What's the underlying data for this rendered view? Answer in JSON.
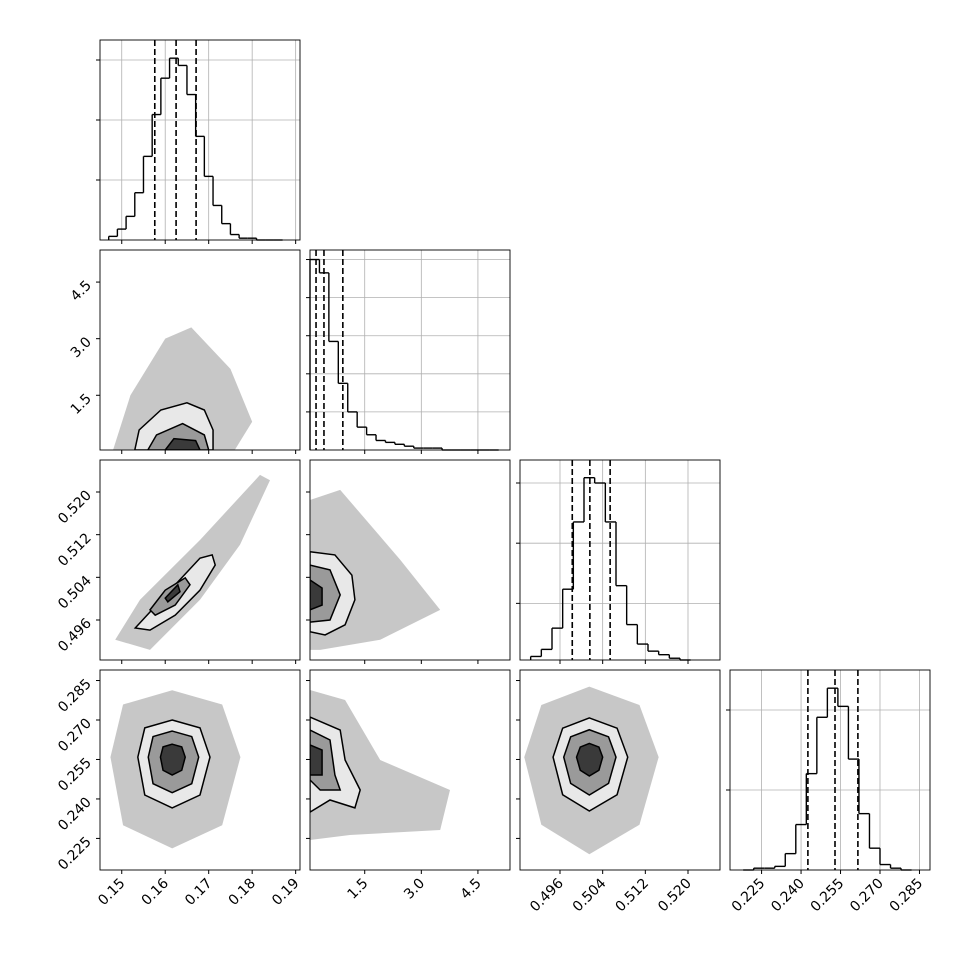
{
  "chart_data": {
    "type": "corner",
    "color": "#000000",
    "grid": true,
    "parameters": [
      {
        "lim": [
          0.145,
          0.191
        ],
        "ticks": [
          0.15,
          0.16,
          0.17,
          0.18,
          0.19
        ]
      },
      {
        "lim": [
          0.05,
          5.35
        ],
        "ticks": [
          1.5,
          {
            "value": 3,
            "label": "3.0"
          },
          4.5
        ]
      },
      {
        "lim": [
          0.4885,
          0.526
        ],
        "ticks": [
          0.496,
          0.504,
          0.512,
          {
            "value": 0.52,
            "label": "0.520"
          }
        ]
      },
      {
        "lim": [
          0.213,
          0.289
        ],
        "ticks": [
          0.225,
          {
            "value": 0.24,
            "label": "0.240"
          },
          0.255,
          {
            "value": 0.27,
            "label": "0.270"
          },
          0.285
        ]
      }
    ],
    "histograms": [
      {
        "bins": [
          0.147,
          0.149,
          0.151,
          0.153,
          0.155,
          0.157,
          0.159,
          0.161,
          0.163,
          0.165,
          0.167,
          0.169,
          0.171,
          0.173,
          0.175,
          0.177,
          0.179,
          0.181,
          0.183,
          0.185,
          0.187
        ],
        "counts": [
          2,
          6,
          13,
          26,
          46,
          69,
          89,
          100,
          96,
          80,
          57,
          35,
          19,
          9,
          3,
          1,
          1,
          0,
          0,
          0
        ],
        "quantiles": [
          0.1576,
          0.1625,
          0.1671
        ],
        "ylim": [
          0,
          110
        ],
        "yticks": [
          33,
          66,
          99
        ]
      },
      {
        "bins": [
          0.05,
          0.3,
          0.55,
          0.8,
          1.05,
          1.3,
          1.55,
          1.8,
          2.05,
          2.3,
          2.55,
          2.8,
          3.05,
          3.3,
          3.55,
          3.8,
          4.05,
          4.3,
          4.55,
          4.8,
          5.05
        ],
        "counts": [
          100,
          93,
          57,
          35,
          20,
          12,
          8,
          5,
          4,
          3,
          2,
          1,
          1,
          1,
          0,
          0,
          0,
          0,
          0,
          0
        ],
        "quantiles": [
          0.21,
          0.42,
          0.92
        ],
        "ylim": [
          0,
          105
        ],
        "yticks": [
          20,
          40,
          60,
          80,
          100
        ]
      },
      {
        "bins": [
          0.4905,
          0.4925,
          0.4945,
          0.4965,
          0.4985,
          0.5005,
          0.5025,
          0.5045,
          0.5065,
          0.5085,
          0.5105,
          0.5125,
          0.5145,
          0.5165,
          0.5185,
          0.5205
        ],
        "counts": [
          2,
          6,
          18,
          40,
          78,
          103,
          100,
          78,
          42,
          20,
          9,
          5,
          3,
          1,
          0
        ],
        "quantiles": [
          0.4983,
          0.5016,
          0.5054
        ],
        "ylim": [
          0,
          113
        ],
        "yticks": [
          32,
          66,
          100
        ]
      },
      {
        "bins": [
          0.218,
          0.222,
          0.226,
          0.23,
          0.234,
          0.238,
          0.242,
          0.246,
          0.25,
          0.254,
          0.258,
          0.262,
          0.266,
          0.27,
          0.274,
          0.278,
          0.282
        ],
        "counts": [
          0,
          1,
          1,
          2,
          9,
          25,
          53,
          84,
          100,
          90,
          61,
          31,
          12,
          3,
          1,
          0
        ],
        "quantiles": [
          0.2426,
          0.2529,
          0.2616
        ],
        "ylim": [
          0,
          110
        ],
        "yticks": [
          44,
          88
        ]
      }
    ],
    "pairs": [
      {
        "cloud": {
          "x": [
            0.148,
            0.152,
            0.16,
            0.166,
            0.175,
            0.18,
            0.176
          ],
          "y": [
            0.05,
            1.5,
            3.0,
            3.3,
            2.2,
            0.8,
            0.05
          ]
        },
        "contours": [
          {
            "x": [
              0.153,
              0.154,
              0.159,
              0.165,
              0.169,
              0.171,
              0.171
            ],
            "y": [
              0.05,
              0.58,
              1.11,
              1.3,
              1.11,
              0.58,
              0.05
            ]
          },
          {
            "x": [
              0.156,
              0.158,
              0.164,
              0.169,
              0.17
            ],
            "y": [
              0.05,
              0.45,
              0.75,
              0.45,
              0.05
            ]
          },
          {
            "x": [
              0.16,
              0.162,
              0.167,
              0.168
            ],
            "y": [
              0.05,
              0.35,
              0.3,
              0.05
            ]
          }
        ]
      },
      {
        "cloud": {
          "x": [
            0.1485,
            0.1542,
            0.168,
            0.1818,
            0.1841,
            0.1772,
            0.168,
            0.1565
          ],
          "y": [
            0.4923,
            0.4998,
            0.511,
            0.5232,
            0.5222,
            0.5101,
            0.4998,
            0.4904
          ]
        },
        "contours": [
          {
            "x": [
              0.1531,
              0.1565,
              0.1623,
              0.168,
              0.1708,
              0.1715,
              0.168,
              0.1623,
              0.1565
            ],
            "y": [
              0.4945,
              0.4975,
              0.5026,
              0.5076,
              0.5082,
              0.5063,
              0.5016,
              0.4969,
              0.4941
            ]
          },
          {
            "x": [
              0.1565,
              0.16,
              0.1646,
              0.1657,
              0.1623,
              0.1577
            ],
            "y": [
              0.4979,
              0.5016,
              0.5039,
              0.5026,
              0.4988,
              0.4969
            ]
          },
          {
            "x": [
              0.16,
              0.1629,
              0.1634,
              0.1606
            ],
            "y": [
              0.5001,
              0.5026,
              0.5013,
              0.4994
            ]
          }
        ]
      },
      {
        "cloud": {
          "x": [
            0.05,
            0.85,
            2.44,
            3.5,
            1.91,
            0.32,
            0.05
          ],
          "y": [
            0.5185,
            0.5204,
            0.5073,
            0.4979,
            0.4923,
            0.4904,
            0.4904
          ]
        },
        "contours": [
          {
            "x": [
              0.05,
              0.71,
              1.16,
              1.24,
              0.98,
              0.45,
              0.05
            ],
            "y": [
              0.5088,
              0.5082,
              0.5044,
              0.4998,
              0.4951,
              0.4932,
              0.4938
            ]
          },
          {
            "x": [
              0.05,
              0.58,
              0.85,
              0.58,
              0.05
            ],
            "y": [
              0.5063,
              0.5054,
              0.5007,
              0.496,
              0.4956
            ]
          },
          {
            "x": [
              0.05,
              0.37,
              0.37,
              0.05
            ],
            "y": [
              0.5035,
              0.502,
              0.4988,
              0.4979
            ]
          }
        ]
      },
      {
        "cloud": {
          "x": [
            0.1616,
            0.1731,
            0.1773,
            0.1731,
            0.1616,
            0.1503,
            0.1474,
            0.1503
          ],
          "y": [
            0.2813,
            0.2759,
            0.2559,
            0.23,
            0.2212,
            0.23,
            0.2559,
            0.2759
          ]
        },
        "contours": [
          {
            "x": [
              0.1616,
              0.168,
              0.1703,
              0.168,
              0.1616,
              0.1553,
              0.1537,
              0.1553
            ],
            "y": [
              0.27,
              0.267,
              0.2559,
              0.2415,
              0.2366,
              0.2415,
              0.2559,
              0.267
            ]
          },
          {
            "x": [
              0.1616,
              0.1661,
              0.1677,
              0.1661,
              0.1616,
              0.1572,
              0.1561,
              0.1572
            ],
            "y": [
              0.2658,
              0.2637,
              0.2559,
              0.2458,
              0.2424,
              0.2458,
              0.2559,
              0.2637
            ]
          },
          {
            "x": [
              0.1616,
              0.1638,
              0.1646,
              0.1638,
              0.1616,
              0.1595,
              0.1589,
              0.1595
            ],
            "y": [
              0.2608,
              0.2598,
              0.2559,
              0.2509,
              0.2491,
              0.2509,
              0.2559,
              0.2598
            ]
          }
        ]
      },
      {
        "cloud": {
          "x": [
            0.05,
            0.98,
            1.91,
            3.76,
            3.5,
            1.11,
            0.05
          ],
          "y": [
            0.2814,
            0.2776,
            0.2548,
            0.2434,
            0.2282,
            0.2263,
            0.2244
          ]
        },
        "contours": [
          {
            "x": [
              0.05,
              0.85,
              0.98,
              1.38,
              1.24,
              0.58,
              0.05
            ],
            "y": [
              0.2711,
              0.2662,
              0.2548,
              0.2434,
              0.2366,
              0.2396,
              0.235
            ]
          },
          {
            "x": [
              0.05,
              0.58,
              0.71,
              0.85,
              0.32,
              0.05
            ],
            "y": [
              0.2662,
              0.2624,
              0.2491,
              0.2434,
              0.2434,
              0.2472
            ]
          },
          {
            "x": [
              0.05,
              0.37,
              0.37,
              0.05
            ],
            "y": [
              0.2605,
              0.2586,
              0.2491,
              0.2491
            ]
          }
        ]
      },
      {
        "cloud": {
          "x": [
            0.5015,
            0.5109,
            0.5145,
            0.5109,
            0.5015,
            0.4925,
            0.4893,
            0.4925
          ],
          "y": [
            0.2827,
            0.2757,
            0.2559,
            0.2302,
            0.219,
            0.2302,
            0.2559,
            0.2757
          ]
        },
        "contours": [
          {
            "x": [
              0.5015,
              0.5067,
              0.5087,
              0.5067,
              0.5015,
              0.4965,
              0.4947,
              0.4965
            ],
            "y": [
              0.2708,
              0.2669,
              0.2559,
              0.2416,
              0.2354,
              0.2416,
              0.2559,
              0.2669
            ]
          },
          {
            "x": [
              0.5015,
              0.5051,
              0.5065,
              0.5051,
              0.5015,
              0.498,
              0.4967,
              0.498
            ],
            "y": [
              0.2663,
              0.2636,
              0.2559,
              0.2459,
              0.2415,
              0.2459,
              0.2559,
              0.2636
            ]
          },
          {
            "x": [
              0.5015,
              0.5033,
              0.504,
              0.5033,
              0.5015,
              0.4998,
              0.4991,
              0.4998
            ],
            "y": [
              0.2611,
              0.2597,
              0.2559,
              0.2509,
              0.2487,
              0.2509,
              0.2559,
              0.2597
            ]
          }
        ]
      }
    ]
  }
}
